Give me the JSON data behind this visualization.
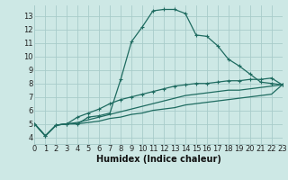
{
  "bg_color": "#cde8e5",
  "grid_color": "#a8ccca",
  "line_color": "#1e6b60",
  "xlabel": "Humidex (Indice chaleur)",
  "xlim": [
    0,
    23
  ],
  "ylim": [
    3.5,
    13.8
  ],
  "xticks": [
    0,
    1,
    2,
    3,
    4,
    5,
    6,
    7,
    8,
    9,
    10,
    11,
    12,
    13,
    14,
    15,
    16,
    17,
    18,
    19,
    20,
    21,
    22,
    23
  ],
  "yticks": [
    4,
    5,
    6,
    7,
    8,
    9,
    10,
    11,
    12,
    13
  ],
  "series": [
    {
      "x": [
        0,
        1,
        2,
        3,
        4,
        5,
        6,
        7,
        8,
        9,
        10,
        11,
        12,
        13,
        14,
        15,
        16,
        17,
        18,
        19,
        20,
        21,
        22,
        23
      ],
      "y": [
        5.0,
        4.1,
        4.9,
        5.0,
        5.0,
        5.5,
        5.6,
        5.8,
        8.3,
        11.1,
        12.2,
        13.4,
        13.5,
        13.5,
        13.2,
        11.6,
        11.5,
        10.8,
        9.8,
        9.3,
        8.7,
        8.1,
        8.0,
        7.9
      ],
      "marker": true
    },
    {
      "x": [
        0,
        1,
        2,
        3,
        4,
        5,
        6,
        7,
        8,
        9,
        10,
        11,
        12,
        13,
        14,
        15,
        16,
        17,
        18,
        19,
        20,
        21,
        22,
        23
      ],
      "y": [
        5.0,
        4.1,
        4.9,
        5.0,
        5.5,
        5.8,
        6.1,
        6.5,
        6.8,
        7.0,
        7.2,
        7.4,
        7.6,
        7.8,
        7.9,
        8.0,
        8.0,
        8.1,
        8.2,
        8.2,
        8.3,
        8.3,
        8.4,
        7.9
      ],
      "marker": true
    },
    {
      "x": [
        0,
        1,
        2,
        3,
        4,
        5,
        6,
        7,
        8,
        9,
        10,
        11,
        12,
        13,
        14,
        15,
        16,
        17,
        18,
        19,
        20,
        21,
        22,
        23
      ],
      "y": [
        5.0,
        4.1,
        4.9,
        5.0,
        5.1,
        5.3,
        5.5,
        5.7,
        5.9,
        6.1,
        6.3,
        6.5,
        6.7,
        6.9,
        7.1,
        7.2,
        7.3,
        7.4,
        7.5,
        7.5,
        7.6,
        7.7,
        7.8,
        7.9
      ],
      "marker": false
    },
    {
      "x": [
        0,
        1,
        2,
        3,
        4,
        5,
        6,
        7,
        8,
        9,
        10,
        11,
        12,
        13,
        14,
        15,
        16,
        17,
        18,
        19,
        20,
        21,
        22,
        23
      ],
      "y": [
        5.0,
        4.1,
        4.9,
        5.0,
        5.0,
        5.1,
        5.2,
        5.4,
        5.5,
        5.7,
        5.8,
        6.0,
        6.1,
        6.2,
        6.4,
        6.5,
        6.6,
        6.7,
        6.8,
        6.9,
        7.0,
        7.1,
        7.2,
        7.9
      ],
      "marker": false
    }
  ],
  "tick_fontsize": 6,
  "xlabel_fontsize": 7,
  "linewidth": 0.9,
  "markersize": 3.0,
  "figwidth": 3.2,
  "figheight": 2.0,
  "dpi": 100
}
